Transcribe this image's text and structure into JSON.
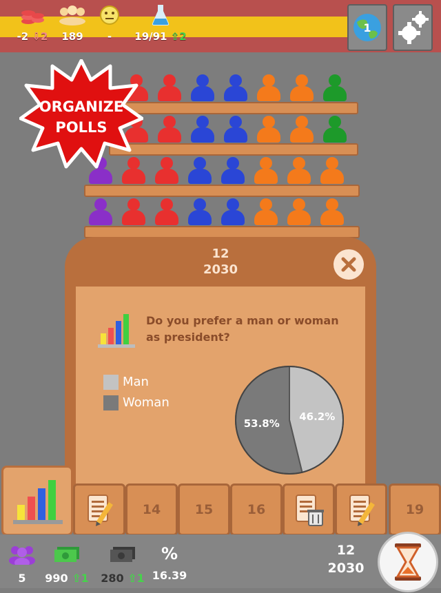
{
  "top_bar": {
    "coins": {
      "value": "-2",
      "delta": "2",
      "icon": "coin-stack-icon"
    },
    "popularity": {
      "value": "189",
      "icon": "crowd-icon"
    },
    "mood": {
      "value": "-",
      "icon": "neutral-face-icon"
    },
    "research": {
      "value": "19/91",
      "delta": "2",
      "icon": "flask-icon"
    },
    "world_button": {
      "label": "1",
      "icon": "globe-icon"
    },
    "settings_button": {
      "icon": "gear-icon"
    }
  },
  "banner": {
    "line1": "ORGANIZE",
    "line2": "POLLS"
  },
  "dialog": {
    "seats": "12",
    "year": "2030",
    "question": "Do you prefer a man or woman as president?",
    "legend": [
      {
        "label": "Man",
        "color": "#c3c3c3"
      },
      {
        "label": "Woman",
        "color": "#7a7a7a"
      }
    ]
  },
  "chart_data": {
    "type": "pie",
    "categories": [
      "Man",
      "Woman"
    ],
    "values": [
      46.2,
      53.8
    ],
    "labels": [
      "46.2%",
      "53.8%"
    ],
    "colors": [
      "#c3c3c3",
      "#7a7a7a"
    ]
  },
  "tabs": {
    "items": [
      "",
      "14",
      "15",
      "16",
      "",
      "",
      "19"
    ]
  },
  "bottom_bar": {
    "members": "5",
    "money": "990",
    "money_delta": "1",
    "cash": "280",
    "cash_delta": "1",
    "percent_label": "%",
    "percent": "16.39",
    "seats": "12",
    "year": "2030"
  },
  "colors": {
    "red": "#e8302f",
    "blue": "#2a46d6",
    "orange": "#f47a1b",
    "green": "#1d9a2a",
    "purple": "#8a2fc8",
    "accent_yellow": "#f2c21a",
    "bar_red": "#b8504e"
  }
}
